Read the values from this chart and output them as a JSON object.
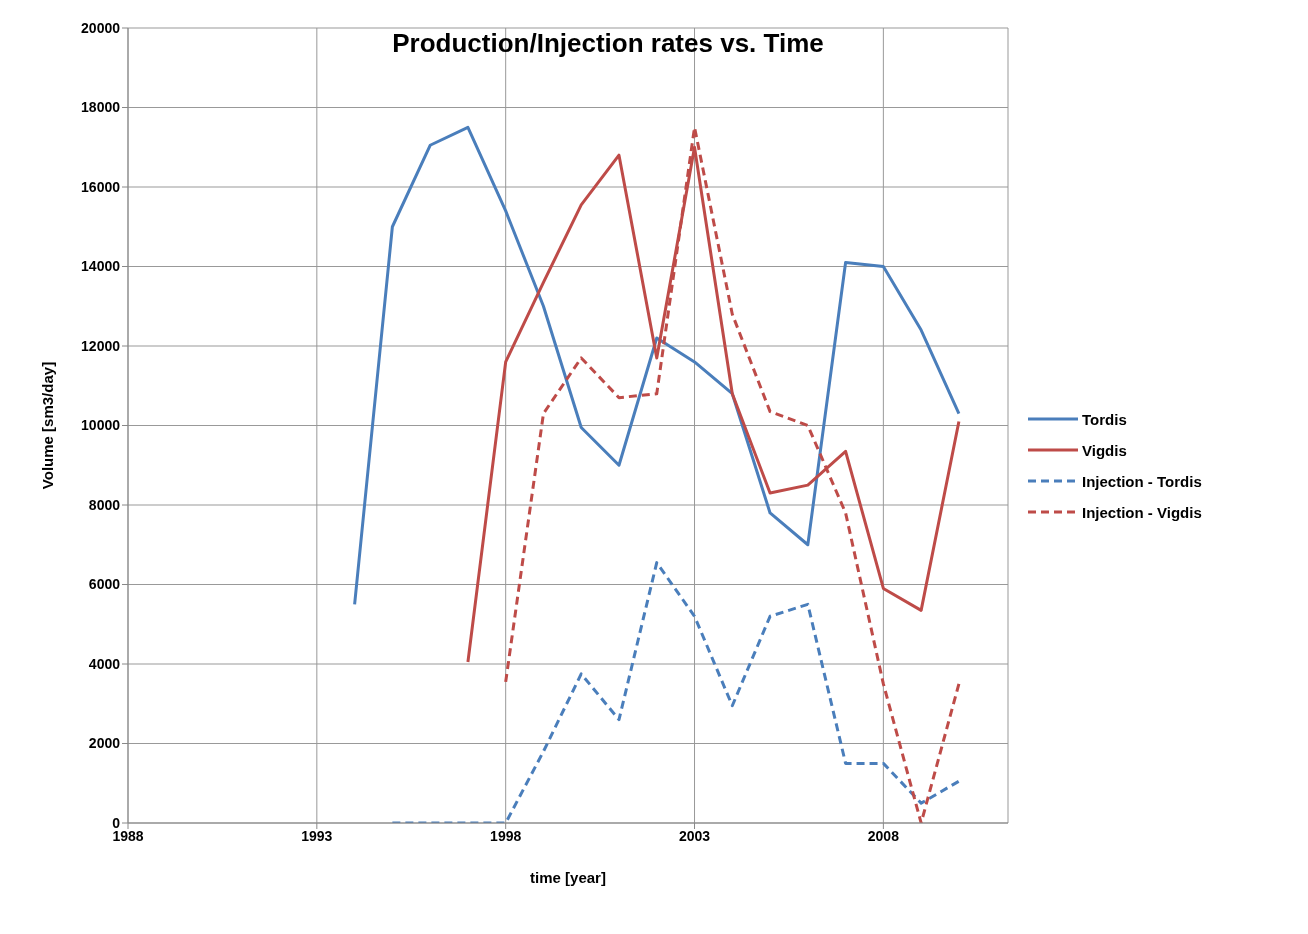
{
  "chart_data": {
    "type": "line",
    "title": "Production/Injection rates vs. Time",
    "xlabel": "time [year]",
    "ylabel": "Volume [sm3/day]",
    "xlim": [
      1988,
      2011.3
    ],
    "xticks": [
      1988,
      1993,
      1998,
      2003,
      2008
    ],
    "ylim": [
      0,
      20000
    ],
    "yticks": [
      0,
      2000,
      4000,
      6000,
      8000,
      10000,
      12000,
      14000,
      16000,
      18000,
      20000
    ],
    "grid": true,
    "legend": "right",
    "marker": "none",
    "series": [
      {
        "name": "Tordis",
        "color": "#4a7ebb",
        "line_style": "solid",
        "x": [
          1994,
          1995,
          1996,
          1997,
          1998,
          1999,
          2000,
          2001,
          2002,
          2003,
          2004,
          2005,
          2006,
          2007,
          2008,
          2009,
          2010
        ],
        "values": [
          5500,
          15000,
          17050,
          17500,
          15400,
          13000,
          9950,
          9000,
          12200,
          11600,
          10800,
          7800,
          7000,
          14100,
          14000,
          12400,
          10300
        ]
      },
      {
        "name": "Vigdis",
        "color": "#be4b48",
        "line_style": "solid",
        "x": [
          1997,
          1998,
          1999,
          2000,
          2001,
          2002,
          2003,
          2004,
          2005,
          2006,
          2007,
          2008,
          2009,
          2010
        ],
        "values": [
          4050,
          11600,
          13600,
          15550,
          16800,
          11700,
          17000,
          10800,
          8300,
          8500,
          9350,
          5900,
          5350,
          10100
        ]
      },
      {
        "name": "Injection - Tordis",
        "color": "#4a7ebb",
        "line_style": "dashed",
        "x": [
          1995,
          1996,
          1997,
          1998,
          1999,
          2000,
          2001,
          2002,
          2003,
          2004,
          2005,
          2006,
          2007,
          2008,
          2009,
          2010
        ],
        "values": [
          0,
          0,
          0,
          0,
          1800,
          3750,
          2600,
          6550,
          5200,
          2950,
          5200,
          5500,
          1500,
          1500,
          500,
          1050
        ]
      },
      {
        "name": "Injection - Vigdis",
        "color": "#be4b48",
        "line_style": "dashed",
        "x": [
          1998,
          1999,
          2000,
          2001,
          2002,
          2003,
          2004,
          2005,
          2006,
          2007,
          2008,
          2009,
          2010
        ],
        "values": [
          3550,
          10300,
          11700,
          10700,
          10800,
          17500,
          12800,
          10350,
          10000,
          7800,
          3500,
          0,
          3500
        ]
      }
    ]
  }
}
